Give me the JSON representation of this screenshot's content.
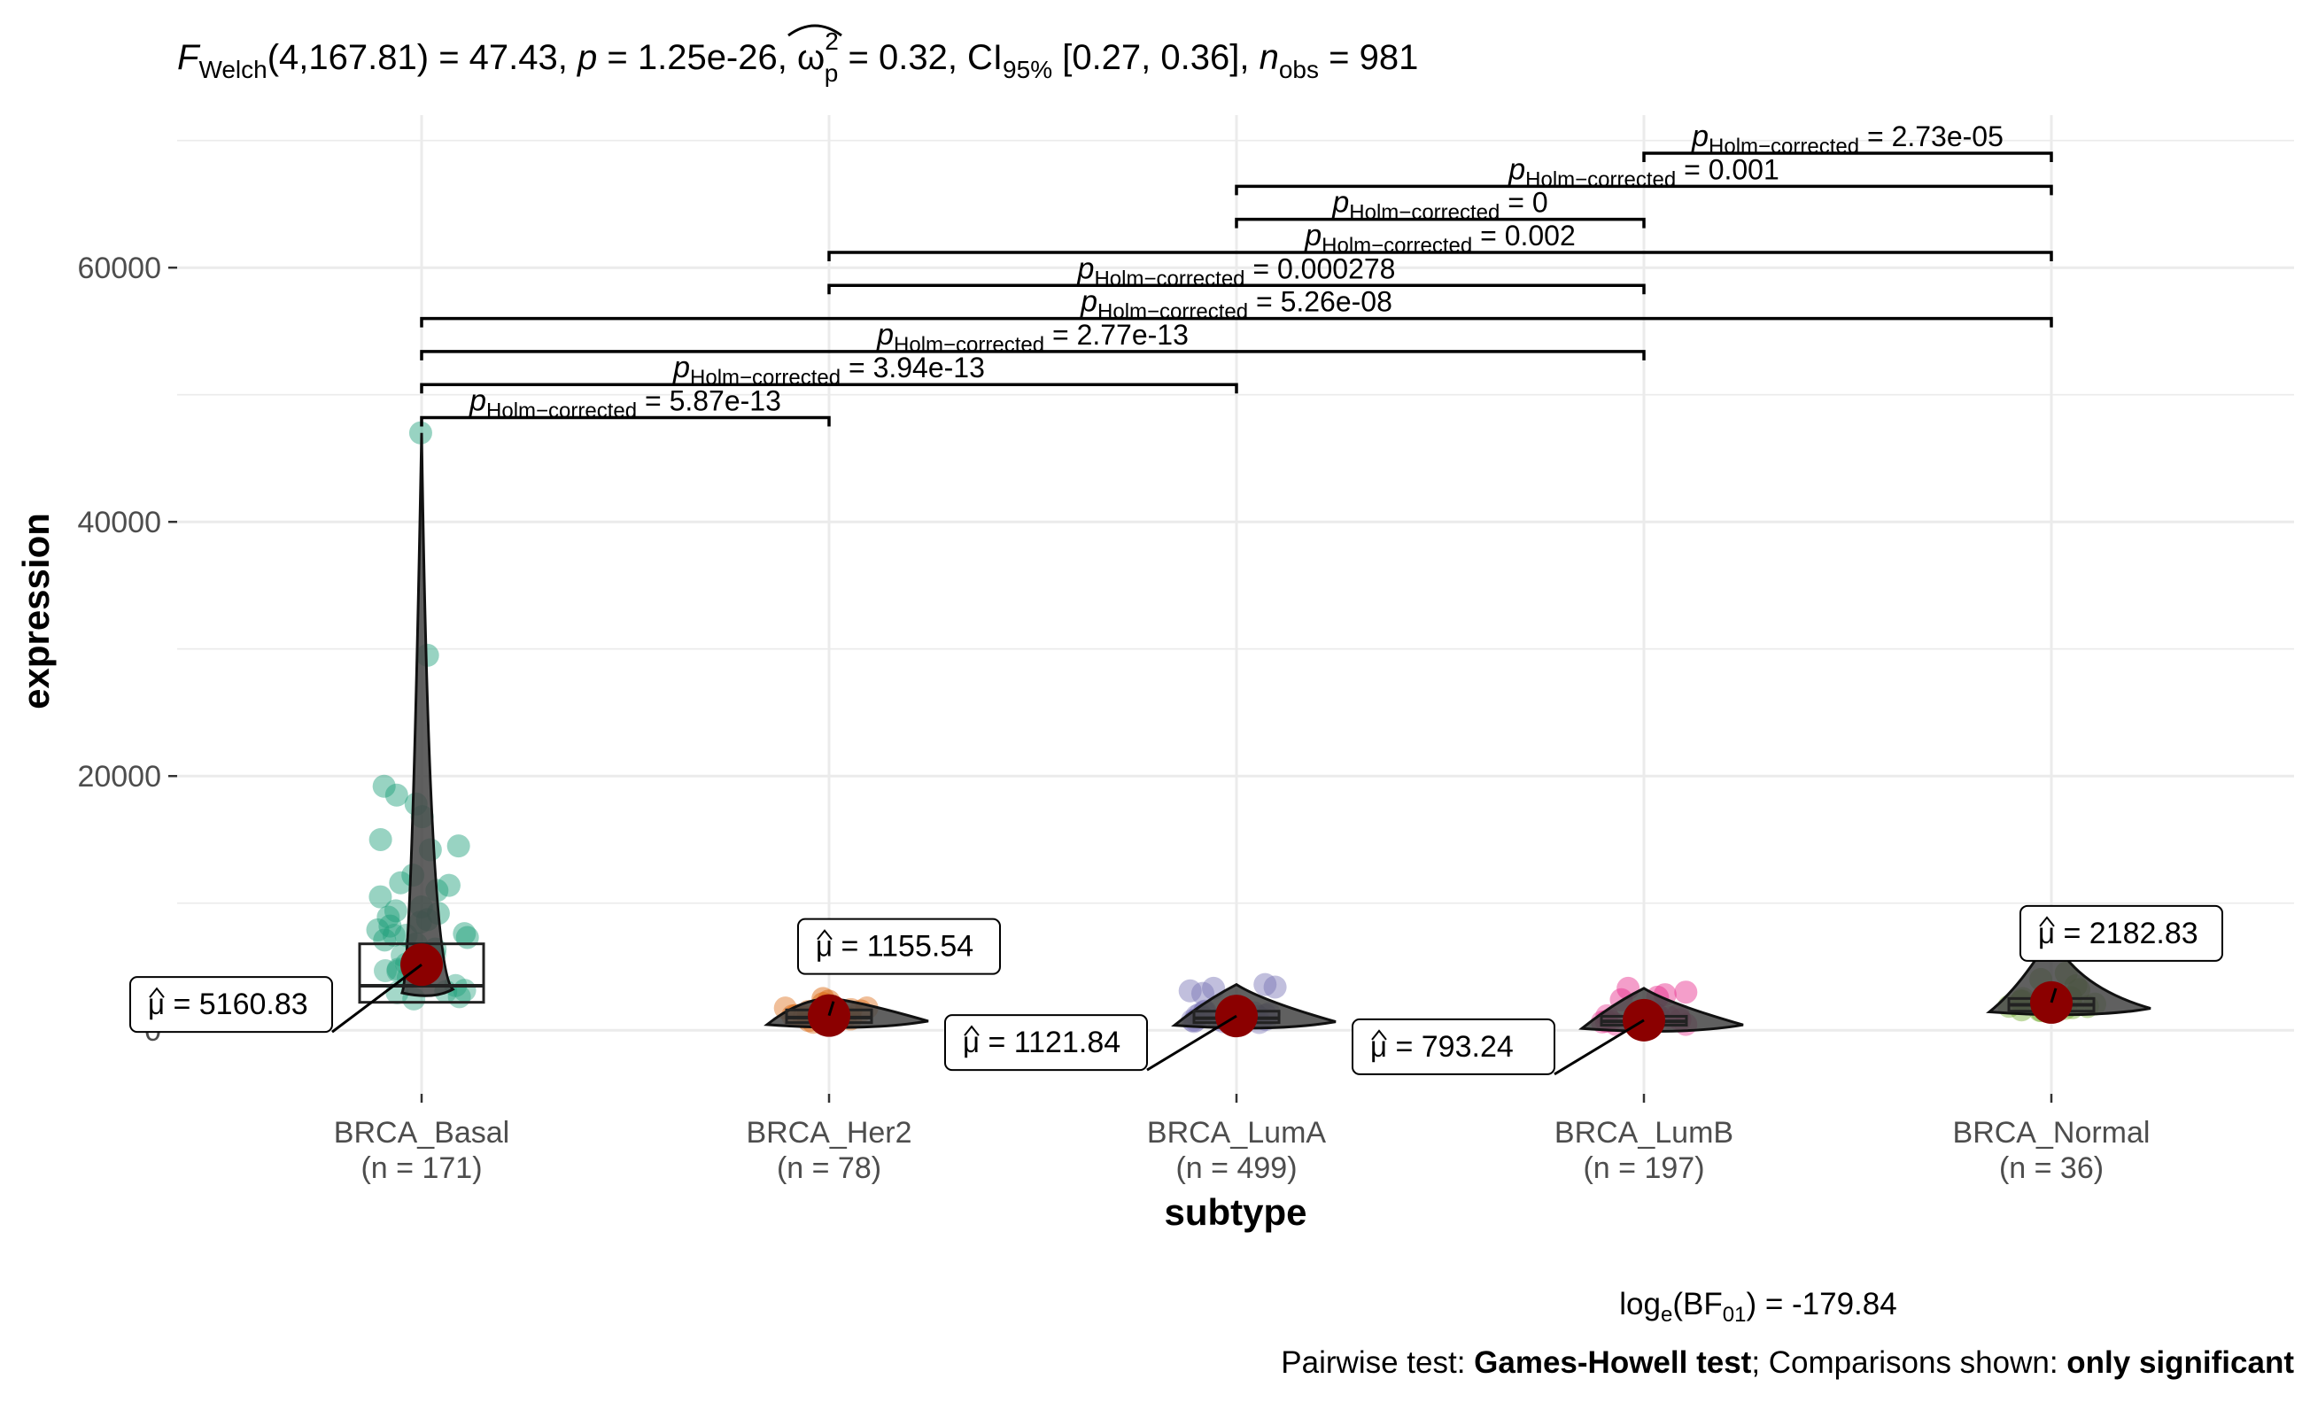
{
  "chart_data": {
    "type": "violin-box-scatter",
    "subtitle": {
      "parts": [
        {
          "t": "F",
          "s": "it"
        },
        {
          "t": "Welch",
          "s": "sub"
        },
        {
          "t": "(4,167.81) = 47.43, ",
          "s": "n"
        },
        {
          "t": "p",
          "s": "it"
        },
        {
          "t": " = 1.25e-26, ",
          "s": "n"
        },
        {
          "t": "ω",
          "s": "hat"
        },
        {
          "t": "2",
          "s": "sup"
        },
        {
          "t": "p",
          "s": "subx"
        },
        {
          "t": " = 0.32, CI",
          "s": "n"
        },
        {
          "t": "95%",
          "s": "sub"
        },
        {
          "t": " [0.27, 0.36], ",
          "s": "n"
        },
        {
          "t": "n",
          "s": "it"
        },
        {
          "t": "obs",
          "s": "sub"
        },
        {
          "t": " = 981",
          "s": "n"
        }
      ]
    },
    "xlabel": "subtype",
    "ylabel": "expression",
    "ylim": [
      -5000,
      72000
    ],
    "yticks": [
      0,
      20000,
      40000,
      60000
    ],
    "ytick_labels": [
      "0",
      "20000",
      "40000",
      "60000"
    ],
    "grid": true,
    "groups": [
      {
        "name": "BRCA_Basal",
        "n_label": "(n = 171)",
        "color": "#1B9E77",
        "mean": 5160.83,
        "mean_label": "= 5160.83",
        "box": {
          "q1": 2200,
          "median": 3500,
          "q3": 6800
        },
        "violin_max": 47000,
        "outliers": [
          47000,
          29500,
          19200,
          18500,
          17800,
          16800,
          15000,
          14500,
          14200,
          12200,
          11600,
          11400,
          11000,
          10500,
          9700,
          9400,
          9200,
          8900,
          8700,
          8500,
          8200,
          7900,
          7600,
          7300,
          7100,
          6800
        ]
      },
      {
        "name": "BRCA_Her2",
        "n_label": "(n = 78)",
        "color": "#D95F02",
        "mean": 1155.54,
        "mean_label": "= 1155.54",
        "box": {
          "q1": 600,
          "median": 1000,
          "q3": 1600
        },
        "violin_max": 2500,
        "outliers": [
          2500,
          2300,
          2100
        ]
      },
      {
        "name": "BRCA_LumA",
        "n_label": "(n = 499)",
        "color": "#7570B3",
        "mean": 1121.84,
        "mean_label": "= 1121.84",
        "box": {
          "q1": 600,
          "median": 950,
          "q3": 1500
        },
        "violin_max": 3600,
        "outliers": [
          3600,
          3400,
          3300,
          3100,
          2900
        ]
      },
      {
        "name": "BRCA_LumB",
        "n_label": "(n = 197)",
        "color": "#E7298A",
        "mean": 793.24,
        "mean_label": "= 793.24",
        "box": {
          "q1": 400,
          "median": 700,
          "q3": 1100
        },
        "violin_max": 3300,
        "outliers": [
          3300,
          3000,
          2800,
          2600,
          2400
        ]
      },
      {
        "name": "BRCA_Normal",
        "n_label": "(n = 36)",
        "color": "#66A61E",
        "mean": 2182.83,
        "mean_label": "= 2182.83",
        "box": {
          "q1": 1500,
          "median": 2000,
          "q3": 2500
        },
        "violin_max": 7500,
        "outliers": [
          7500,
          4500,
          4000,
          3500,
          3200
        ]
      }
    ],
    "comparisons": [
      {
        "from": 3,
        "to": 4,
        "y": 69000,
        "value": "= 2.73e-05"
      },
      {
        "from": 2,
        "to": 4,
        "y": 66400,
        "value": "= 0.001"
      },
      {
        "from": 2,
        "to": 3,
        "y": 63800,
        "value": "= 0"
      },
      {
        "from": 1,
        "to": 4,
        "y": 61200,
        "value": "= 0.002"
      },
      {
        "from": 1,
        "to": 3,
        "y": 58600,
        "value": "= 0.000278"
      },
      {
        "from": 0,
        "to": 4,
        "y": 56000,
        "value": "= 5.26e-08"
      },
      {
        "from": 0,
        "to": 3,
        "y": 53400,
        "value": "= 2.77e-13"
      },
      {
        "from": 0,
        "to": 2,
        "y": 50800,
        "value": "= 3.94e-13"
      },
      {
        "from": 0,
        "to": 1,
        "y": 48200,
        "value": "= 5.87e-13"
      }
    ],
    "p_prefix": "p",
    "p_subscript": "Holm−corrected",
    "mean_symbol": "μ",
    "caption_bf": {
      "pre": "log",
      "sub1": "e",
      "mid": "(BF",
      "sub2": "01",
      "post": ") = -179.84"
    },
    "caption_test": [
      {
        "t": "Pairwise test: ",
        "b": false
      },
      {
        "t": "Games-Howell test",
        "b": true
      },
      {
        "t": "; Comparisons shown: ",
        "b": false
      },
      {
        "t": "only significant",
        "b": true
      }
    ],
    "mean_point_color": "#8B0000"
  }
}
